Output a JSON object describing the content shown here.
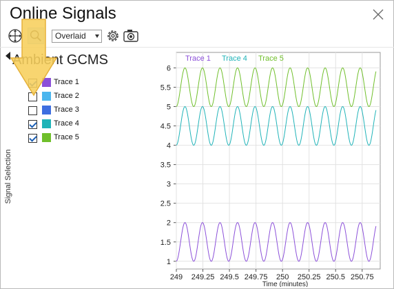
{
  "window": {
    "title": "Online Signals",
    "close_icon": "close-icon"
  },
  "toolbar": {
    "pan_icon": "move-icon",
    "zoom_icon": "magnifier-icon",
    "mode_value": "Overlaid",
    "settings_icon": "gear-icon",
    "snapshot_icon": "camera-icon"
  },
  "panel": {
    "group_name": "Ambient GCMS",
    "vertical_label": "Signal Selection",
    "traces": [
      {
        "label": "Trace 1",
        "checked": true,
        "color": "#8b4fd9"
      },
      {
        "label": "Trace 2",
        "checked": false,
        "color": "#4bb6ee"
      },
      {
        "label": "Trace 3",
        "checked": false,
        "color": "#3e6ee0"
      },
      {
        "label": "Trace 4",
        "checked": true,
        "color": "#1fb3b8"
      },
      {
        "label": "Trace 5",
        "checked": true,
        "color": "#6fbf2a"
      }
    ]
  },
  "overlay": {
    "arrow_color": "#f7cf5c"
  },
  "chart_data": {
    "type": "line",
    "xlabel": "Time (minutes)",
    "ylabel": "",
    "xlim": [
      249,
      250.92
    ],
    "ylim": [
      0.8,
      6.4
    ],
    "x_ticks": [
      249,
      249.25,
      249.5,
      249.75,
      250,
      250.25,
      250.5,
      250.75
    ],
    "x_tick_labels": [
      "249",
      "249.25",
      "249.5",
      "249.75",
      "250",
      "250.25",
      "250.5",
      "250.75"
    ],
    "y_ticks": [
      1,
      1.5,
      2,
      2.5,
      3,
      3.5,
      4,
      4.5,
      5,
      5.5,
      6
    ],
    "y_tick_labels": [
      "1",
      "1.5",
      "2",
      "2.5",
      "3",
      "3.5",
      "4",
      "4.5",
      "5",
      "5.5",
      "6"
    ],
    "grid": true,
    "legend": "top",
    "series": [
      {
        "name": "Trace 1",
        "color": "#8b4fd9",
        "center": 1.5,
        "amplitude": 0.5,
        "period_min": 0.165,
        "phase_x": 249.04,
        "x_start": 249.0,
        "x_end": 250.88
      },
      {
        "name": "Trace 4",
        "color": "#1fb3b8",
        "center": 4.5,
        "amplitude": 0.5,
        "period_min": 0.165,
        "phase_x": 249.04,
        "x_start": 249.0,
        "x_end": 250.88
      },
      {
        "name": "Trace 5",
        "color": "#6fbf2a",
        "center": 5.5,
        "amplitude": 0.5,
        "period_min": 0.165,
        "phase_x": 249.04,
        "x_start": 249.0,
        "x_end": 250.88
      }
    ]
  }
}
